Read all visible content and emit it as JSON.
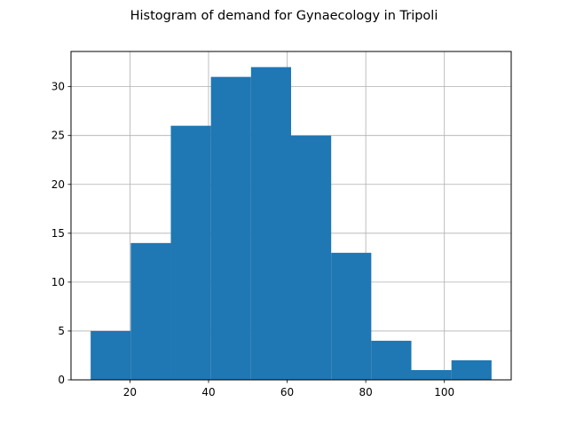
{
  "chart_data": {
    "type": "bar",
    "title": "Histogram of demand for Gynaecology in Tripoli",
    "xlabel": "",
    "ylabel": "",
    "bin_edges": [
      10.0,
      20.2,
      30.4,
      40.6,
      50.8,
      61.0,
      71.2,
      81.4,
      91.6,
      101.8,
      112.0
    ],
    "values": [
      5,
      14,
      26,
      31,
      32,
      25,
      13,
      4,
      1,
      2
    ],
    "xlim": [
      5,
      117
    ],
    "ylim": [
      0,
      33.6
    ],
    "x_ticks": [
      20,
      40,
      60,
      80,
      100
    ],
    "y_ticks": [
      0,
      5,
      10,
      15,
      20,
      25,
      30
    ],
    "grid": true,
    "bar_color": "#1f77b4",
    "grid_color": "#b0b0b0"
  }
}
